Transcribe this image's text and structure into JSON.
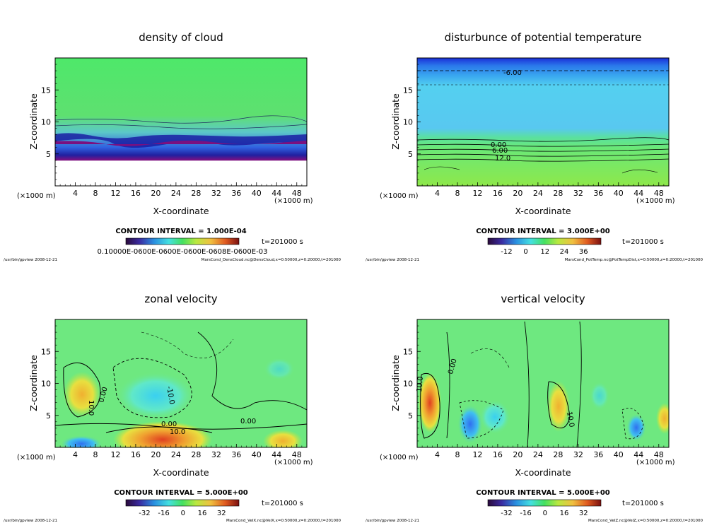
{
  "footer_left": "/usr/bin/gpview   2008-12-21",
  "time_label": "t=201000 s",
  "x_unit": "(×1000 m)",
  "charts": [
    {
      "id": "dens",
      "title": "density of cloud",
      "xlabel": "X-coordinate",
      "ylabel": "Z-coordinate",
      "x_unit_bottom": "(×1000 m)",
      "y_unit": "(×1000 m)",
      "xticks": [
        "4",
        "8",
        "12",
        "16",
        "20",
        "24",
        "28",
        "32",
        "36",
        "40",
        "44",
        "48"
      ],
      "yticks": [
        "5",
        "10",
        "15"
      ],
      "xlim": [
        0,
        50
      ],
      "ylim": [
        0,
        20
      ],
      "contour_interval": "CONTOUR INTERVAL = 1.000E-04",
      "colorbar_labels": [
        "0.10000E-0600E-0600E-0600E-0608E-0600E-03"
      ],
      "footer_right": "MarsCond_DensCloud.nc@DensCloud,x=0:50000,z=0:20000,t=201000",
      "contour_labels": []
    },
    {
      "id": "pt",
      "title": "disturbunce of potential temperature",
      "xlabel": "X-coordinate",
      "ylabel": "Z-coordinate",
      "x_unit_bottom": "(×1000 m)",
      "y_unit": "(×1000 m)",
      "xticks": [
        "4",
        "8",
        "12",
        "16",
        "20",
        "24",
        "28",
        "32",
        "36",
        "40",
        "44",
        "48"
      ],
      "yticks": [
        "5",
        "10",
        "15"
      ],
      "xlim": [
        0,
        50
      ],
      "ylim": [
        0,
        20
      ],
      "contour_interval": "CONTOUR INTERVAL = 3.000E+00",
      "colorbar_labels": [
        "-12",
        "0",
        "12",
        "24",
        "36"
      ],
      "footer_right": "MarsCond_PotTemp.nc@PotTempDist,x=0:50000,z=0:20000,t=201000",
      "contour_labels": [
        "-6.00",
        "0.00",
        "6.00",
        "12.0"
      ]
    },
    {
      "id": "u",
      "title": "zonal velocity",
      "xlabel": "X-coordinate",
      "ylabel": "Z-coordinate",
      "x_unit_bottom": "(×1000 m)",
      "y_unit": "(×1000 m)",
      "xticks": [
        "4",
        "8",
        "12",
        "16",
        "20",
        "24",
        "28",
        "32",
        "36",
        "40",
        "44",
        "48"
      ],
      "yticks": [
        "5",
        "10",
        "15"
      ],
      "xlim": [
        0,
        50
      ],
      "ylim": [
        0,
        20
      ],
      "contour_interval": "CONTOUR INTERVAL = 5.000E+00",
      "colorbar_labels": [
        "-32",
        "-16",
        "0",
        "16",
        "32"
      ],
      "footer_right": "MarsCond_VelX.nc@VelX,x=0:50000,z=0:20000,t=201000",
      "contour_labels": [
        "10.0",
        "0.00",
        "-10.0",
        "0.00",
        "10.0",
        "0.00"
      ]
    },
    {
      "id": "w",
      "title": "vertical velocity",
      "xlabel": "X-coordinate",
      "ylabel": "Z-coordinate",
      "x_unit_bottom": "(×1000 m)",
      "y_unit": "(×1000 m)",
      "xticks": [
        "4",
        "8",
        "12",
        "16",
        "20",
        "24",
        "28",
        "32",
        "36",
        "40",
        "44",
        "48"
      ],
      "yticks": [
        "5",
        "10",
        "15"
      ],
      "xlim": [
        0,
        50
      ],
      "ylim": [
        0,
        20
      ],
      "contour_interval": "CONTOUR INTERVAL = 5.000E+00",
      "colorbar_labels": [
        "-32",
        "-16",
        "0",
        "16",
        "32"
      ],
      "footer_right": "MarsCond_VelZ.nc@VelZ,x=0:50000,z=0:20000,t=201000",
      "contour_labels": [
        "10.0",
        "0.00",
        "10.0"
      ]
    }
  ],
  "chart_data": [
    {
      "type": "heatmap",
      "title": "density of cloud",
      "xlabel": "X-coordinate",
      "ylabel": "Z-coordinate",
      "xlim": [
        0,
        50
      ],
      "ylim": [
        0,
        20
      ],
      "xticks": [
        4,
        8,
        12,
        16,
        20,
        24,
        28,
        32,
        36,
        40,
        44,
        48
      ],
      "yticks": [
        5,
        10,
        15
      ],
      "contour_interval": 0.0001,
      "cloud_base_z_approx": 7,
      "dense_layer_z_approx": [
        7,
        10
      ]
    },
    {
      "type": "heatmap",
      "title": "disturbunce of potential temperature",
      "xlabel": "X-coordinate",
      "ylabel": "Z-coordinate",
      "xlim": [
        0,
        50
      ],
      "ylim": [
        0,
        20
      ],
      "xticks": [
        4,
        8,
        12,
        16,
        20,
        24,
        28,
        32,
        36,
        40,
        44,
        48
      ],
      "yticks": [
        5,
        10,
        15
      ],
      "contour_interval": 3.0,
      "colorbar_ticks": [
        -12,
        0,
        12,
        24,
        36
      ],
      "labeled_contours": [
        {
          "value": -6.0,
          "z": 17.5
        },
        {
          "value": 0.0,
          "z": 6.5
        },
        {
          "value": 6.0,
          "z": 5.5
        },
        {
          "value": 12.0,
          "z": 4.5
        }
      ]
    },
    {
      "type": "heatmap",
      "title": "zonal velocity",
      "xlabel": "X-coordinate",
      "ylabel": "Z-coordinate",
      "xlim": [
        0,
        50
      ],
      "ylim": [
        0,
        20
      ],
      "xticks": [
        4,
        8,
        12,
        16,
        20,
        24,
        28,
        32,
        36,
        40,
        44,
        48
      ],
      "yticks": [
        5,
        10,
        15
      ],
      "contour_interval": 5.0,
      "colorbar_ticks": [
        -32,
        -16,
        0,
        16,
        32
      ]
    },
    {
      "type": "heatmap",
      "title": "vertical velocity",
      "xlabel": "X-coordinate",
      "ylabel": "Z-coordinate",
      "xlim": [
        0,
        50
      ],
      "ylim": [
        0,
        20
      ],
      "xticks": [
        4,
        8,
        12,
        16,
        20,
        24,
        28,
        32,
        36,
        40,
        44,
        48
      ],
      "yticks": [
        5,
        10,
        15
      ],
      "contour_interval": 5.0,
      "colorbar_ticks": [
        -32,
        -16,
        0,
        16,
        32
      ]
    }
  ]
}
